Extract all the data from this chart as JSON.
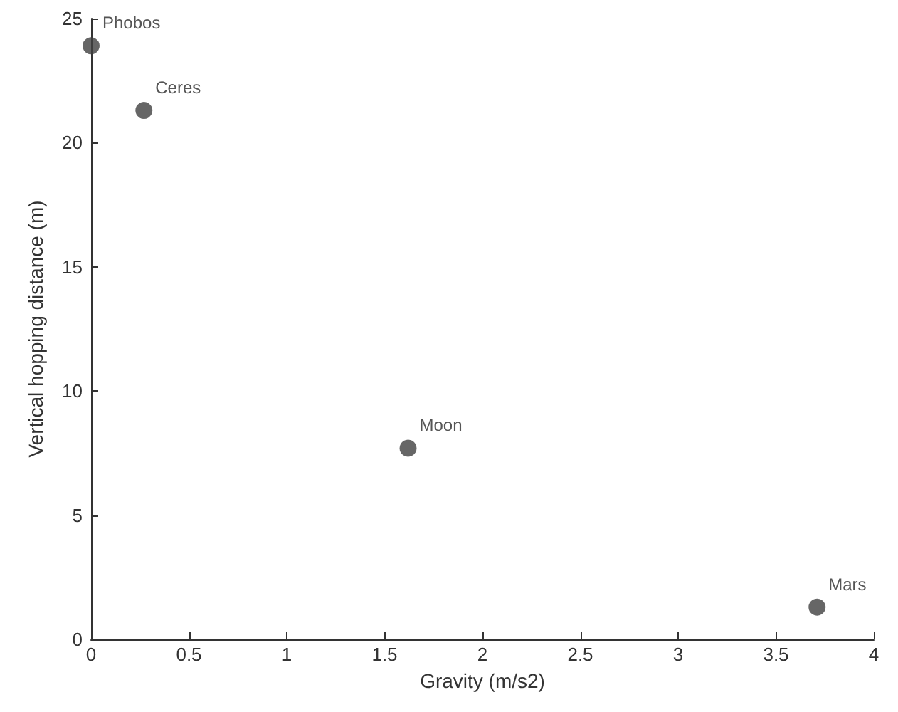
{
  "chart_data": {
    "type": "scatter",
    "xlabel": "Gravity (m/s2)",
    "ylabel": "Vertical hopping distance (m)",
    "x": [
      0.0,
      0.27,
      1.62,
      3.71
    ],
    "series": [
      {
        "color": "#404040",
        "values": [
          23.9,
          21.3,
          7.7,
          1.3
        ]
      }
    ],
    "xlim": [
      0,
      4
    ],
    "xticks": [
      0,
      0.5,
      1,
      1.5,
      2,
      2.5,
      3,
      3.5,
      4
    ],
    "ylim": [
      0,
      25
    ],
    "yticks": [
      0,
      5,
      10,
      15,
      20,
      25
    ],
    "marker": "circle",
    "annotations": [
      {
        "text": "Phobos",
        "x": 0.0,
        "y": 23.9
      },
      {
        "text": "Ceres",
        "x": 0.27,
        "y": 21.3
      },
      {
        "text": "Moon",
        "x": 1.62,
        "y": 7.7
      },
      {
        "text": "Mars",
        "x": 3.71,
        "y": 1.3
      }
    ]
  }
}
